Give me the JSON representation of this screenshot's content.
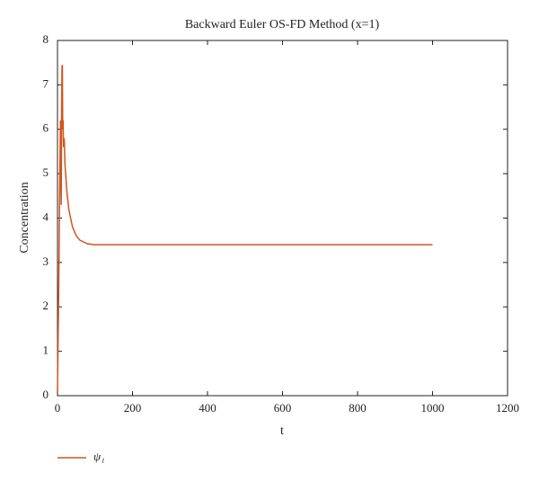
{
  "chart_data": {
    "type": "line",
    "title": "Backward Euler OS-FD Method (x=1)",
    "xlabel": "t",
    "ylabel": "Concentration",
    "x": [
      0,
      2,
      4,
      6,
      8,
      9,
      10,
      11,
      12,
      13,
      14,
      15,
      16,
      18,
      20,
      25,
      30,
      40,
      50,
      60,
      80,
      100,
      200,
      400,
      600,
      800,
      1000
    ],
    "series": [
      {
        "name": "ψ₁",
        "color": "#d4541c",
        "values": [
          0.1,
          1.5,
          3.0,
          4.8,
          6.2,
          5.0,
          4.3,
          6.5,
          7.4,
          7.45,
          6.0,
          6.2,
          5.6,
          5.8,
          5.2,
          4.6,
          4.2,
          3.8,
          3.6,
          3.5,
          3.42,
          3.4,
          3.4,
          3.4,
          3.4,
          3.4,
          3.4
        ]
      }
    ],
    "xlim": [
      0,
      1200
    ],
    "xticks": [
      0,
      200,
      400,
      600,
      800,
      1000,
      1200
    ],
    "ylim": [
      0,
      8
    ],
    "yticks": [
      0,
      1,
      2,
      3,
      4,
      5,
      6,
      7,
      8
    ],
    "grid": false,
    "legend": "bottom-left"
  }
}
